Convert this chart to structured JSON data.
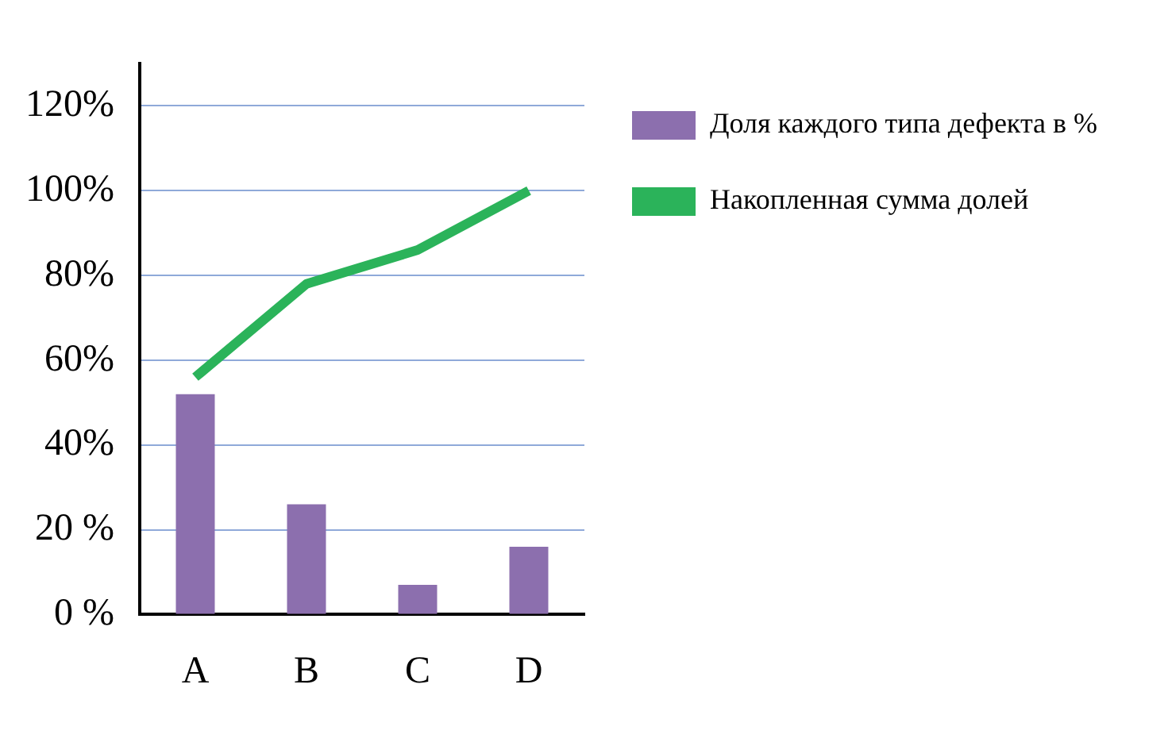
{
  "chart_data": {
    "type": "bar",
    "categories": [
      "A",
      "B",
      "C",
      "D"
    ],
    "series": [
      {
        "name": "Доля каждого типа дефекта в %",
        "color": "#8c6fae",
        "values": [
          52,
          26,
          7,
          16
        ]
      },
      {
        "name": "Накопленная сумма долей",
        "type": "line",
        "color": "#2bb35a",
        "values": [
          56,
          78,
          86,
          100
        ]
      }
    ],
    "ylim": [
      0,
      130
    ],
    "yticks": [
      {
        "value": 0,
        "label": "0 %"
      },
      {
        "value": 20,
        "label": "20 %"
      },
      {
        "value": 40,
        "label": "40%"
      },
      {
        "value": 60,
        "label": "60%"
      },
      {
        "value": 80,
        "label": "80%"
      },
      {
        "value": 100,
        "label": "100%"
      },
      {
        "value": 120,
        "label": "120%"
      }
    ],
    "grid": "y",
    "legend": "right",
    "marker": "none",
    "line_style": "solid"
  }
}
